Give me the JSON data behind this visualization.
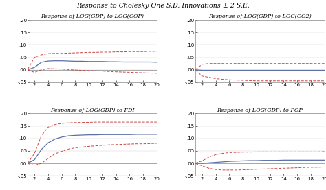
{
  "title": "Response to Cholesky One S.D. Innovations ± 2 S.E.",
  "subplots": [
    {
      "title": "Response of LOG(GDP) to LOG(COP)",
      "ylim": [
        -0.05,
        0.2
      ],
      "yticks": [
        -0.05,
        0.0,
        0.05,
        0.1,
        0.15,
        0.2
      ],
      "ytick_labels": [
        "-.05",
        ".00",
        ".05",
        ".10",
        ".15",
        ".20"
      ],
      "center_values": [
        0.0,
        0.01,
        0.03,
        0.035,
        0.036,
        0.036,
        0.035,
        0.034,
        0.034,
        0.033,
        0.033,
        0.033,
        0.032,
        0.032,
        0.031,
        0.031,
        0.031,
        0.031,
        0.031,
        0.03
      ],
      "upper_values": [
        0.002,
        0.05,
        0.06,
        0.065,
        0.066,
        0.066,
        0.067,
        0.068,
        0.069,
        0.07,
        0.07,
        0.071,
        0.071,
        0.072,
        0.072,
        0.073,
        0.073,
        0.073,
        0.074,
        0.074
      ],
      "lower_values": [
        -0.001,
        -0.01,
        0.0,
        0.005,
        0.004,
        0.003,
        0.001,
        -0.001,
        -0.002,
        -0.003,
        -0.004,
        -0.005,
        -0.007,
        -0.008,
        -0.009,
        -0.01,
        -0.011,
        -0.012,
        -0.013,
        -0.014
      ]
    },
    {
      "title": "Response of LOG(GDP) to LOG(CO2)",
      "ylim": [
        -0.05,
        0.2
      ],
      "yticks": [
        -0.05,
        0.0,
        0.05,
        0.1,
        0.15,
        0.2
      ],
      "ytick_labels": [
        "-.05",
        ".00",
        ".05",
        ".10",
        ".15",
        ".20"
      ],
      "center_values": [
        0.0,
        -0.002,
        -0.002,
        -0.002,
        -0.002,
        -0.002,
        -0.002,
        -0.002,
        -0.002,
        -0.002,
        -0.002,
        -0.002,
        -0.002,
        -0.002,
        -0.002,
        -0.002,
        -0.002,
        -0.002,
        -0.002,
        -0.002
      ],
      "upper_values": [
        0.001,
        0.022,
        0.025,
        0.025,
        0.025,
        0.025,
        0.025,
        0.025,
        0.025,
        0.025,
        0.025,
        0.025,
        0.025,
        0.025,
        0.025,
        0.025,
        0.025,
        0.025,
        0.025,
        0.025
      ],
      "lower_values": [
        -0.001,
        -0.025,
        -0.03,
        -0.035,
        -0.038,
        -0.04,
        -0.041,
        -0.042,
        -0.043,
        -0.044,
        -0.044,
        -0.044,
        -0.044,
        -0.044,
        -0.044,
        -0.044,
        -0.044,
        -0.044,
        -0.044,
        -0.044
      ]
    },
    {
      "title": "Response of LOG(GDP) to FDI",
      "ylim": [
        -0.05,
        0.2
      ],
      "yticks": [
        -0.05,
        0.0,
        0.05,
        0.1,
        0.15,
        0.2
      ],
      "ytick_labels": [
        "-.05",
        ".00",
        ".05",
        ".10",
        ".15",
        ".20"
      ],
      "center_values": [
        0.0,
        0.015,
        0.055,
        0.082,
        0.097,
        0.105,
        0.11,
        0.112,
        0.113,
        0.114,
        0.114,
        0.115,
        0.115,
        0.115,
        0.115,
        0.115,
        0.116,
        0.116,
        0.116,
        0.116
      ],
      "upper_values": [
        0.001,
        0.04,
        0.11,
        0.145,
        0.155,
        0.16,
        0.162,
        0.163,
        0.164,
        0.164,
        0.165,
        0.165,
        0.165,
        0.165,
        0.165,
        0.165,
        0.165,
        0.165,
        0.165,
        0.165
      ],
      "lower_values": [
        -0.001,
        -0.008,
        0.0,
        0.02,
        0.038,
        0.048,
        0.057,
        0.062,
        0.065,
        0.068,
        0.07,
        0.072,
        0.074,
        0.075,
        0.076,
        0.077,
        0.078,
        0.078,
        0.079,
        0.08
      ]
    },
    {
      "title": "Response of LOG(GDP) to POP",
      "ylim": [
        -0.05,
        0.2
      ],
      "yticks": [
        -0.05,
        0.0,
        0.05,
        0.1,
        0.15,
        0.2
      ],
      "ytick_labels": [
        "-.05",
        ".00",
        ".05",
        ".10",
        ".15",
        ".20"
      ],
      "center_values": [
        0.0,
        0.0,
        0.002,
        0.004,
        0.006,
        0.008,
        0.009,
        0.01,
        0.011,
        0.011,
        0.012,
        0.012,
        0.012,
        0.013,
        0.013,
        0.013,
        0.013,
        0.013,
        0.013,
        0.013
      ],
      "upper_values": [
        0.001,
        0.01,
        0.025,
        0.035,
        0.04,
        0.043,
        0.044,
        0.045,
        0.045,
        0.046,
        0.046,
        0.046,
        0.046,
        0.046,
        0.046,
        0.046,
        0.046,
        0.046,
        0.046,
        0.047
      ],
      "lower_values": [
        -0.001,
        -0.01,
        -0.02,
        -0.025,
        -0.027,
        -0.027,
        -0.027,
        -0.026,
        -0.025,
        -0.024,
        -0.023,
        -0.022,
        -0.021,
        -0.02,
        -0.019,
        -0.018,
        -0.017,
        -0.016,
        -0.016,
        -0.015
      ]
    }
  ],
  "x_values": [
    1,
    2,
    3,
    4,
    5,
    6,
    7,
    8,
    9,
    10,
    11,
    12,
    13,
    14,
    15,
    16,
    17,
    18,
    19,
    20
  ],
  "xticks": [
    2,
    4,
    6,
    8,
    10,
    12,
    14,
    16,
    18,
    20
  ],
  "center_color": "#5b6fa6",
  "band_color": "#cc4444",
  "zero_line_color": "#888888",
  "border_color": "#888888",
  "bg_color": "#ffffff",
  "title_fontsize": 6.8,
  "subtitle_fontsize": 5.8,
  "tick_fontsize": 5.0,
  "title_style": "italic",
  "subtitle_style": "italic"
}
